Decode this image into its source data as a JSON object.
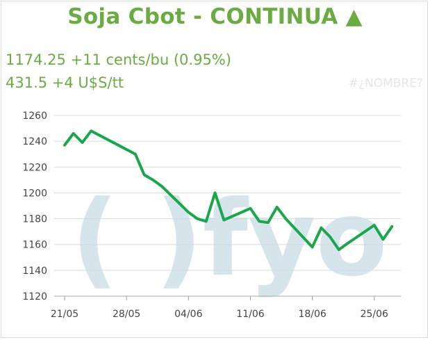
{
  "header": {
    "title": "Soja Cbot - CONTINUA ▲",
    "price_line": "1174.25 +11 cents/bu (0.95%)",
    "ton_line": "431.5 +4 U$S/tt",
    "hashtag": "#¿NOMBRE?"
  },
  "watermark": "(  )fyo",
  "colors": {
    "accent": "#6aac42",
    "line": "#1aa64b",
    "grid": "#dcdcdc",
    "watermark": "#c9dde6"
  },
  "chart_data": {
    "type": "line",
    "title": "Soja Cbot - CONTINUA ▲",
    "xlabel": "",
    "ylabel": "",
    "ylim": [
      1120,
      1260
    ],
    "yticks": [
      1120,
      1140,
      1160,
      1180,
      1200,
      1220,
      1240,
      1260
    ],
    "xticks": [
      "21/05",
      "28/05",
      "04/06",
      "11/06",
      "18/06",
      "25/06"
    ],
    "grid": true,
    "series": [
      {
        "x": [
          "2018-05-21",
          "2018-05-22",
          "2018-05-23",
          "2018-05-24",
          "2018-05-29",
          "2018-05-30",
          "2018-05-31",
          "2018-06-01",
          "2018-06-04",
          "2018-06-05",
          "2018-06-06",
          "2018-06-07",
          "2018-06-08",
          "2018-06-11",
          "2018-06-12",
          "2018-06-13",
          "2018-06-14",
          "2018-06-15",
          "2018-06-18",
          "2018-06-19",
          "2018-06-20",
          "2018-06-21",
          "2018-06-22",
          "2018-06-25",
          "2018-06-26",
          "2018-06-27"
        ],
        "values": [
          1237,
          1246,
          1239,
          1248,
          1230,
          1214,
          1210,
          1205,
          1185,
          1180,
          1178,
          1200,
          1179,
          1188,
          1178,
          1177,
          1189,
          1180,
          1158,
          1173,
          1166,
          1156,
          1161,
          1175,
          1164,
          1174
        ]
      }
    ]
  }
}
